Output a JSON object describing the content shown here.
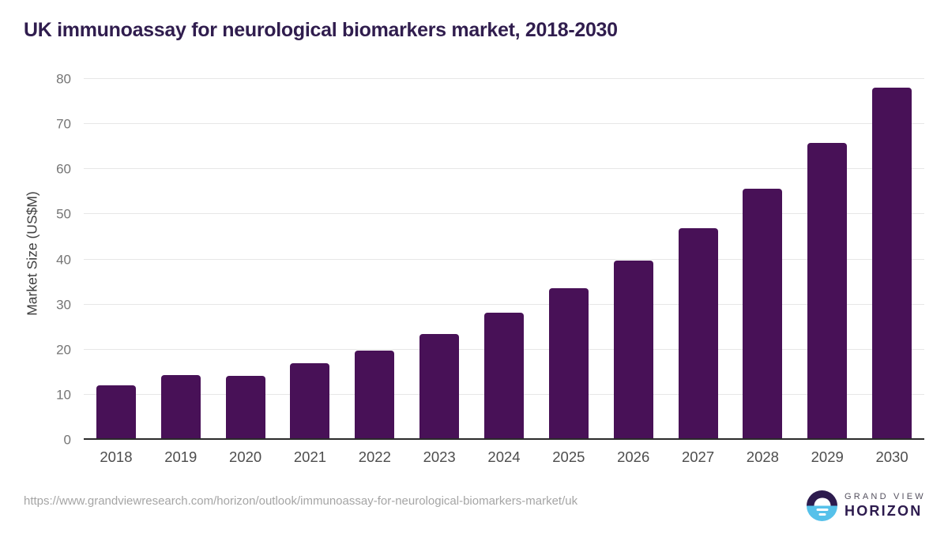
{
  "header": {
    "title": "UK immunoassay for neurological biomarkers market, 2018-2030"
  },
  "chart_data": {
    "type": "bar",
    "title": "UK immunoassay for neurological biomarkers market, 2018-2030",
    "categories": [
      "2018",
      "2019",
      "2020",
      "2021",
      "2022",
      "2023",
      "2024",
      "2025",
      "2026",
      "2027",
      "2028",
      "2029",
      "2030"
    ],
    "values": [
      12.0,
      14.3,
      14.1,
      16.9,
      19.8,
      23.5,
      28.1,
      33.6,
      39.7,
      46.9,
      55.7,
      65.9,
      78.1
    ],
    "xlabel": "",
    "ylabel": "Market Size (US$M)",
    "ylim": [
      0,
      80
    ],
    "ytick_step": 10,
    "yticks": [
      0,
      10,
      20,
      30,
      40,
      50,
      60,
      70,
      80
    ],
    "grid": true,
    "legend": "none",
    "bar_color": "#481157"
  },
  "footer": {
    "source_url": "https://www.grandviewresearch.com/horizon/outlook/immunoassay-for-neurological-biomarkers-market/uk",
    "logo": {
      "icon": "horizon-sunset-icon",
      "line1": "GRAND VIEW",
      "line2": "HORIZON"
    }
  },
  "colors": {
    "bar": "#481157",
    "title": "#301d4e",
    "axis_line": "#2b2b2b",
    "gridline": "#e7e7e7",
    "y_tick": "#757575",
    "x_tick": "#4d4d4d",
    "y_label": "#3f3f3f",
    "url": "#a5a5a5",
    "logo_dark": "#2d1b4e",
    "logo_blue": "#56c1ea"
  }
}
